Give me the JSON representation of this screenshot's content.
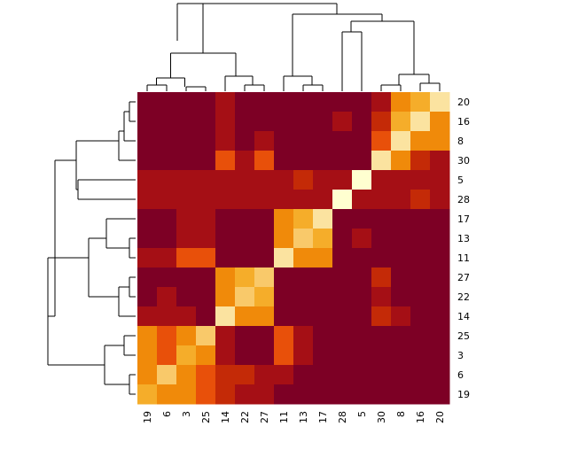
{
  "chart_data": {
    "type": "heatmap",
    "title": "",
    "xlabel": "",
    "ylabel": "",
    "col_labels": [
      "19",
      "6",
      "3",
      "25",
      "14",
      "22",
      "27",
      "11",
      "13",
      "17",
      "28",
      "5",
      "30",
      "8",
      "16",
      "20"
    ],
    "row_labels": [
      "20",
      "16",
      "8",
      "30",
      "5",
      "28",
      "17",
      "13",
      "11",
      "27",
      "22",
      "14",
      "25",
      "3",
      "6",
      "19"
    ],
    "color_scale": [
      "#7d0025",
      "#a50f15",
      "#c42a07",
      "#e8500a",
      "#f08a0a",
      "#f5ad2a",
      "#f9c96a",
      "#fbe3a0",
      "#ffffd0"
    ],
    "values": [
      [
        0,
        0,
        0,
        0,
        1,
        0,
        0,
        0,
        0,
        0,
        0,
        0,
        1,
        4,
        5,
        7
      ],
      [
        0,
        0,
        0,
        0,
        1,
        0,
        0,
        0,
        0,
        0,
        1,
        0,
        2,
        5,
        7,
        4
      ],
      [
        0,
        0,
        0,
        0,
        1,
        0,
        1,
        0,
        0,
        0,
        0,
        0,
        3,
        7,
        4,
        4
      ],
      [
        0,
        0,
        0,
        0,
        3,
        1,
        3,
        0,
        0,
        0,
        0,
        0,
        7,
        4,
        2,
        1
      ],
      [
        1,
        1,
        1,
        1,
        1,
        1,
        1,
        1,
        2,
        1,
        1,
        8,
        1,
        1,
        1,
        1
      ],
      [
        1,
        1,
        1,
        1,
        1,
        1,
        1,
        1,
        1,
        1,
        8,
        1,
        1,
        1,
        2,
        1
      ],
      [
        0,
        0,
        1,
        1,
        0,
        0,
        0,
        4,
        5,
        7,
        0,
        0,
        0,
        0,
        0,
        0
      ],
      [
        0,
        0,
        1,
        1,
        0,
        0,
        0,
        4,
        6,
        5,
        0,
        1,
        0,
        0,
        0,
        0
      ],
      [
        1,
        1,
        3,
        3,
        0,
        0,
        0,
        7,
        4,
        4,
        0,
        0,
        0,
        0,
        0,
        0
      ],
      [
        0,
        0,
        0,
        0,
        4,
        5,
        6,
        0,
        0,
        0,
        0,
        0,
        2,
        0,
        0,
        0
      ],
      [
        0,
        1,
        0,
        0,
        4,
        6,
        5,
        0,
        0,
        0,
        0,
        0,
        1,
        0,
        0,
        0
      ],
      [
        1,
        1,
        1,
        0,
        7,
        4,
        4,
        0,
        0,
        0,
        0,
        0,
        2,
        1,
        0,
        0
      ],
      [
        4,
        3,
        4,
        6,
        1,
        0,
        0,
        3,
        1,
        0,
        0,
        0,
        0,
        0,
        0,
        0
      ],
      [
        4,
        3,
        5,
        4,
        1,
        0,
        0,
        3,
        1,
        0,
        0,
        0,
        0,
        0,
        0,
        0
      ],
      [
        4,
        6,
        4,
        3,
        2,
        2,
        1,
        1,
        0,
        0,
        0,
        0,
        0,
        0,
        0,
        0
      ],
      [
        5,
        4,
        4,
        3,
        2,
        1,
        1,
        0,
        0,
        0,
        0,
        0,
        0,
        0,
        0,
        0
      ]
    ],
    "col_dendrogram": true,
    "row_dendrogram": true,
    "legend": "none"
  }
}
